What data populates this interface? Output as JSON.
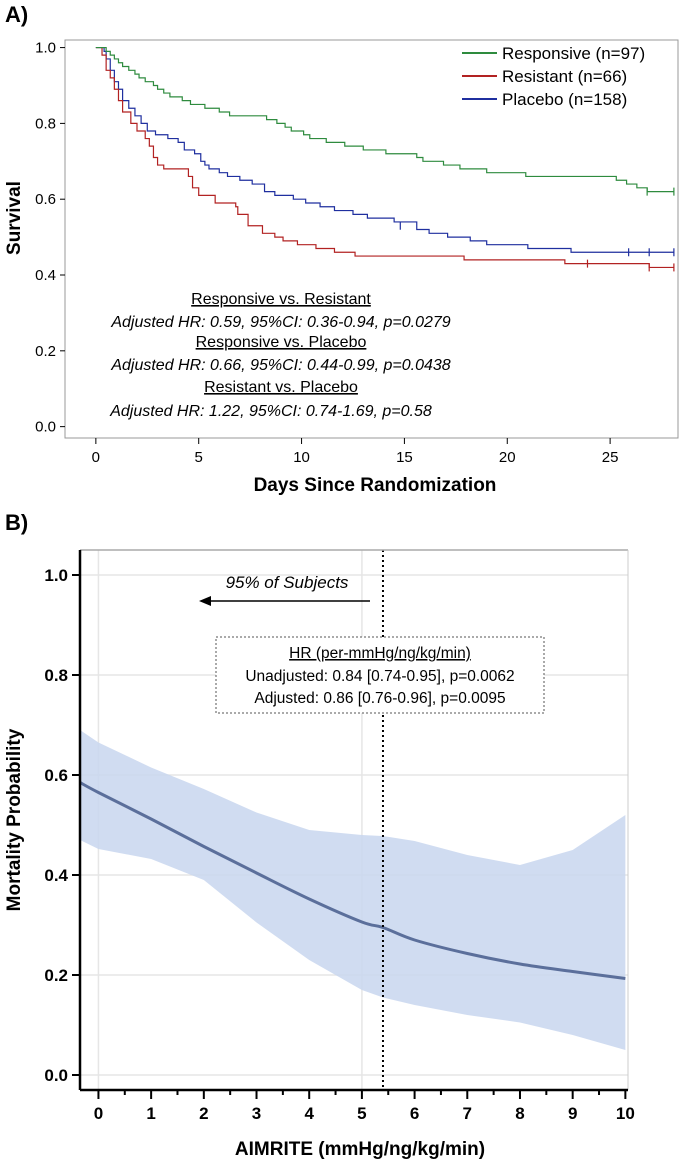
{
  "figure": {
    "panel_a_label": "A)",
    "panel_b_label": "B)"
  },
  "chart_data": [
    {
      "type": "line",
      "subtype": "kaplan-meier",
      "title": "",
      "xlabel": "Days Since Randomization",
      "ylabel": "Survival",
      "xlim": [
        -1.5,
        28.3
      ],
      "ylim": [
        -0.03,
        1.02
      ],
      "xticks": [
        0,
        5,
        10,
        15,
        20,
        25
      ],
      "yticks": [
        0.0,
        0.2,
        0.4,
        0.6,
        0.8,
        1.0
      ],
      "ytick_labels": [
        "0.0",
        "0.2",
        "0.4",
        "0.6",
        "0.8",
        "1.0"
      ],
      "legend_position": "top-right",
      "series": [
        {
          "name": "Responsive (n=97)",
          "color": "#2e8b3e",
          "steps": [
            [
              0,
              1.0
            ],
            [
              0.5,
              0.99
            ],
            [
              0.7,
              0.98
            ],
            [
              0.9,
              0.97
            ],
            [
              1.1,
              0.96
            ],
            [
              1.3,
              0.95
            ],
            [
              1.6,
              0.94
            ],
            [
              1.9,
              0.93
            ],
            [
              2.1,
              0.92
            ],
            [
              2.4,
              0.91
            ],
            [
              2.8,
              0.9
            ],
            [
              3.0,
              0.89
            ],
            [
              3.3,
              0.88
            ],
            [
              3.6,
              0.87
            ],
            [
              4.2,
              0.86
            ],
            [
              4.6,
              0.85
            ],
            [
              5.3,
              0.84
            ],
            [
              6.0,
              0.83
            ],
            [
              6.5,
              0.82
            ],
            [
              7.5,
              0.82
            ],
            [
              8.3,
              0.81
            ],
            [
              8.8,
              0.8
            ],
            [
              9.2,
              0.79
            ],
            [
              9.5,
              0.78
            ],
            [
              10.1,
              0.77
            ],
            [
              10.4,
              0.76
            ],
            [
              11.2,
              0.75
            ],
            [
              12.1,
              0.74
            ],
            [
              13.0,
              0.73
            ],
            [
              14.1,
              0.72
            ],
            [
              15.6,
              0.71
            ],
            [
              15.9,
              0.7
            ],
            [
              16.9,
              0.69
            ],
            [
              17.7,
              0.68
            ],
            [
              19.0,
              0.67
            ],
            [
              20.9,
              0.66
            ],
            [
              25.3,
              0.65
            ],
            [
              25.8,
              0.64
            ],
            [
              26.3,
              0.63
            ],
            [
              26.8,
              0.62
            ],
            [
              28.1,
              0.62
            ]
          ],
          "censored": [
            [
              26.8,
              0.62
            ],
            [
              28.1,
              0.62
            ]
          ]
        },
        {
          "name": "Resistant (n=66)",
          "color": "#b22222",
          "steps": [
            [
              0,
              1.0
            ],
            [
              0.3,
              0.98
            ],
            [
              0.5,
              0.94
            ],
            [
              0.7,
              0.92
            ],
            [
              0.9,
              0.89
            ],
            [
              1.1,
              0.86
            ],
            [
              1.3,
              0.83
            ],
            [
              1.7,
              0.8
            ],
            [
              2.0,
              0.78
            ],
            [
              2.4,
              0.76
            ],
            [
              2.6,
              0.74
            ],
            [
              2.8,
              0.71
            ],
            [
              3.0,
              0.69
            ],
            [
              3.3,
              0.68
            ],
            [
              4.5,
              0.66
            ],
            [
              4.7,
              0.63
            ],
            [
              5.0,
              0.61
            ],
            [
              5.8,
              0.59
            ],
            [
              6.8,
              0.58
            ],
            [
              6.9,
              0.56
            ],
            [
              7.4,
              0.53
            ],
            [
              8.1,
              0.51
            ],
            [
              8.7,
              0.5
            ],
            [
              9.1,
              0.49
            ],
            [
              9.8,
              0.48
            ],
            [
              10.7,
              0.47
            ],
            [
              11.6,
              0.46
            ],
            [
              12.6,
              0.45
            ],
            [
              13.1,
              0.45
            ],
            [
              16.9,
              0.45
            ],
            [
              17.9,
              0.44
            ],
            [
              22.8,
              0.43
            ],
            [
              26.9,
              0.42
            ],
            [
              28.1,
              0.42
            ]
          ],
          "censored": [
            [
              23.9,
              0.43
            ],
            [
              26.9,
              0.42
            ],
            [
              28.1,
              0.42
            ]
          ]
        },
        {
          "name": "Placebo (n=158)",
          "color": "#1f2f9f",
          "steps": [
            [
              0,
              1.0
            ],
            [
              0.4,
              0.99
            ],
            [
              0.5,
              0.97
            ],
            [
              0.7,
              0.94
            ],
            [
              0.9,
              0.91
            ],
            [
              1.1,
              0.89
            ],
            [
              1.3,
              0.86
            ],
            [
              1.6,
              0.84
            ],
            [
              1.9,
              0.82
            ],
            [
              2.2,
              0.8
            ],
            [
              2.5,
              0.78
            ],
            [
              2.9,
              0.77
            ],
            [
              3.5,
              0.76
            ],
            [
              4.0,
              0.75
            ],
            [
              4.3,
              0.73
            ],
            [
              4.8,
              0.72
            ],
            [
              5.1,
              0.7
            ],
            [
              5.3,
              0.69
            ],
            [
              5.5,
              0.68
            ],
            [
              6.0,
              0.67
            ],
            [
              6.4,
              0.66
            ],
            [
              7.0,
              0.65
            ],
            [
              7.6,
              0.64
            ],
            [
              8.2,
              0.62
            ],
            [
              8.7,
              0.61
            ],
            [
              9.6,
              0.6
            ],
            [
              10.2,
              0.59
            ],
            [
              10.9,
              0.58
            ],
            [
              11.6,
              0.57
            ],
            [
              12.5,
              0.56
            ],
            [
              13.2,
              0.55
            ],
            [
              14.5,
              0.54
            ],
            [
              15.6,
              0.52
            ],
            [
              16.2,
              0.51
            ],
            [
              17.1,
              0.5
            ],
            [
              18.2,
              0.49
            ],
            [
              19.0,
              0.48
            ],
            [
              21.0,
              0.47
            ],
            [
              23.1,
              0.46
            ],
            [
              28.1,
              0.46
            ]
          ],
          "censored": [
            [
              14.8,
              0.53
            ],
            [
              25.9,
              0.46
            ],
            [
              26.9,
              0.46
            ],
            [
              28.1,
              0.46
            ]
          ]
        }
      ],
      "annotations": [
        {
          "heading": "Responsive vs. Resistant",
          "text": "Adjusted HR: 0.59, 95%CI: 0.36-0.94, p=0.0279"
        },
        {
          "heading": "Responsive vs. Placebo",
          "text": "Adjusted HR: 0.66, 95%CI: 0.44-0.99, p=0.0438"
        },
        {
          "heading": "Resistant vs. Placebo",
          "text": "Adjusted HR: 1.22, 95%CI: 0.74-1.69, p=0.58"
        }
      ]
    },
    {
      "type": "line",
      "subtype": "curve-with-confidence-band",
      "title": "",
      "xlabel": "AIMRITE (mmHg/ng/kg/min)",
      "ylabel": "Mortality Probability",
      "xlim": [
        -0.35,
        10.05
      ],
      "ylim": [
        -0.03,
        1.05
      ],
      "xticks": [
        0,
        1,
        2,
        3,
        4,
        5,
        6,
        7,
        8,
        9,
        10
      ],
      "yticks": [
        0.0,
        0.2,
        0.4,
        0.6,
        0.8,
        1.0
      ],
      "ytick_labels": [
        "0.0",
        "0.2",
        "0.4",
        "0.6",
        "0.8",
        "1.0"
      ],
      "grid": true,
      "line_color": "#5b6f9b",
      "band_color": "#c8d6ee",
      "x": [
        -0.35,
        0,
        1,
        2,
        3,
        4,
        5,
        5.4,
        6,
        7,
        8,
        9,
        10
      ],
      "y": [
        0.585,
        0.565,
        0.512,
        0.457,
        0.404,
        0.352,
        0.306,
        0.295,
        0.27,
        0.243,
        0.222,
        0.207,
        0.193
      ],
      "upper": [
        0.69,
        0.665,
        0.615,
        0.572,
        0.525,
        0.49,
        0.48,
        0.478,
        0.468,
        0.44,
        0.42,
        0.45,
        0.52
      ],
      "lower": [
        0.47,
        0.452,
        0.432,
        0.39,
        0.305,
        0.23,
        0.17,
        0.155,
        0.14,
        0.12,
        0.105,
        0.08,
        0.05
      ],
      "reference_line": {
        "x": 5.4,
        "style": "dotted",
        "label": "95% of Subjects",
        "arrow_direction": "left"
      },
      "annotation_box": {
        "heading": "HR (per-mmHg/ng/kg/min)",
        "lines": [
          "Unadjusted: 0.84 [0.74-0.95], p=0.0062",
          "Adjusted: 0.86 [0.76-0.96], p=0.0095"
        ]
      }
    }
  ]
}
